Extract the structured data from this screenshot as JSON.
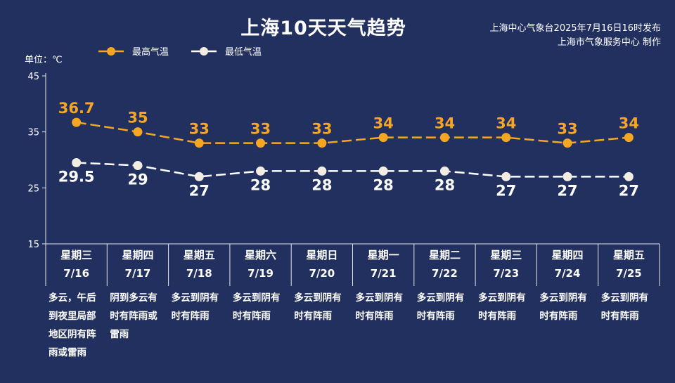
{
  "title": "上海10天天气趋势",
  "source": {
    "line1": "上海中心气象台2025年7月16日16时发布",
    "line2": "上海市气象服务中心 制作"
  },
  "unit_label": "单位：℃",
  "colors": {
    "background": "#22305f",
    "high": "#f5a623",
    "low": "#ffffff",
    "axis": "#e6e6e6"
  },
  "chart_data": {
    "type": "line",
    "title": "上海10天天气趋势",
    "ylabel": "单位：℃",
    "ylim": [
      15,
      45
    ],
    "yticks": [
      15,
      25,
      35,
      45
    ],
    "legend_position": "top-left",
    "grid": false,
    "days": [
      {
        "weekday": "星期三",
        "date": "7/16",
        "desc": "多云，午后\n到夜里局部\n地区阴有阵\n雨或雷雨"
      },
      {
        "weekday": "星期四",
        "date": "7/17",
        "desc": "阴到多云有\n时有阵雨或\n雷雨"
      },
      {
        "weekday": "星期五",
        "date": "7/18",
        "desc": "多云到阴有\n时有阵雨"
      },
      {
        "weekday": "星期六",
        "date": "7/19",
        "desc": "多云到阴有\n时有阵雨"
      },
      {
        "weekday": "星期日",
        "date": "7/20",
        "desc": "多云到阴有\n时有阵雨"
      },
      {
        "weekday": "星期一",
        "date": "7/21",
        "desc": "多云到阴有\n时有阵雨"
      },
      {
        "weekday": "星期二",
        "date": "7/22",
        "desc": "多云到阴有\n时有阵雨"
      },
      {
        "weekday": "星期三",
        "date": "7/23",
        "desc": "多云到阴有\n时有阵雨"
      },
      {
        "weekday": "星期四",
        "date": "7/24",
        "desc": "多云到阴有\n时有阵雨"
      },
      {
        "weekday": "星期五",
        "date": "7/25",
        "desc": "多云到阴有\n时有阵雨"
      }
    ],
    "series": [
      {
        "name": "最高气温",
        "color": "#f5a623",
        "values": [
          36.7,
          35,
          33,
          33,
          33,
          34,
          34,
          34,
          33,
          34
        ],
        "labels": [
          "36.7",
          "35",
          "33",
          "33",
          "33",
          "34",
          "34",
          "34",
          "33",
          "34"
        ]
      },
      {
        "name": "最低气温",
        "color": "#ffffff",
        "values": [
          29.5,
          29,
          27,
          28,
          28,
          28,
          28,
          27,
          27,
          27
        ],
        "labels": [
          "29.5",
          "29",
          "27",
          "28",
          "28",
          "28",
          "28",
          "27",
          "27",
          "27"
        ]
      }
    ]
  }
}
